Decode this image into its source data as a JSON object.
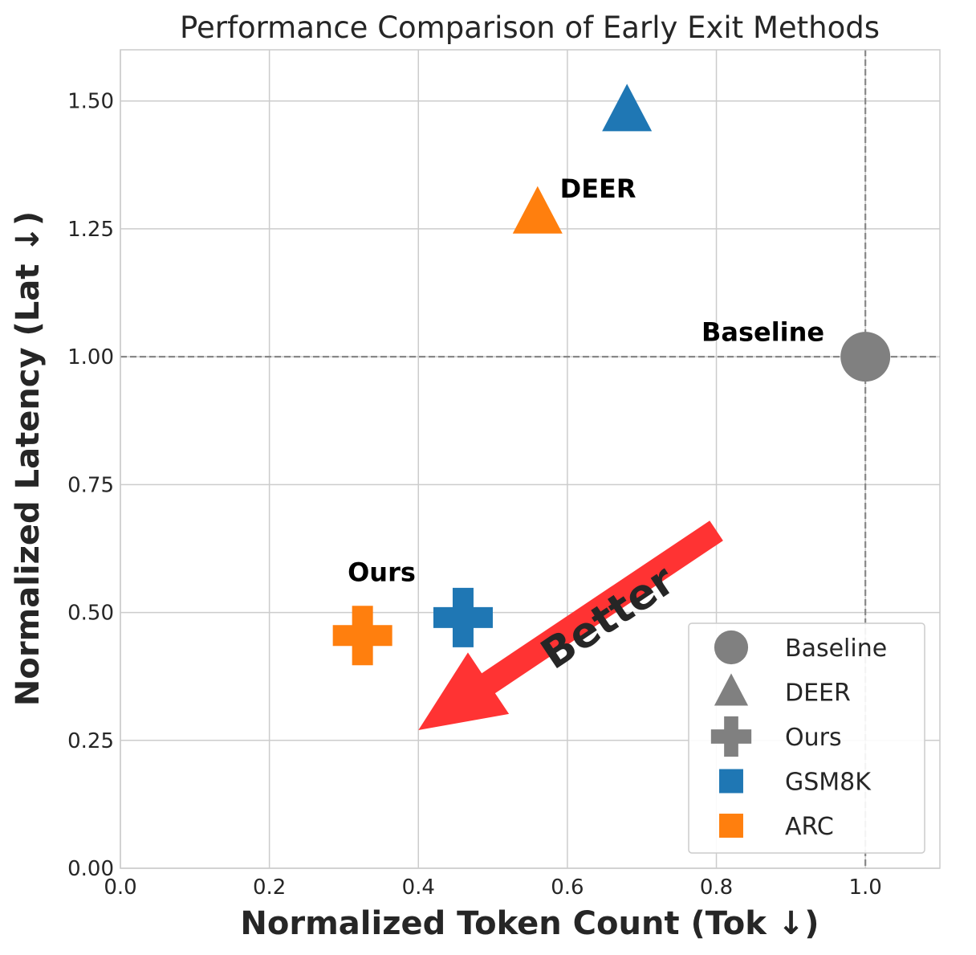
{
  "chart_data": {
    "type": "scatter",
    "title": "Performance Comparison of Early Exit Methods",
    "xlabel": "Normalized Token Count (Tok ↓)",
    "ylabel": "Normalized Latency (Lat ↓)",
    "xlim": [
      0.0,
      1.1
    ],
    "ylim": [
      0.0,
      1.6
    ],
    "x_ticks": [
      0.0,
      0.2,
      0.4,
      0.6,
      0.8,
      1.0
    ],
    "x_tick_labels": [
      "0.0",
      "0.2",
      "0.4",
      "0.6",
      "0.8",
      "1.0"
    ],
    "y_ticks": [
      0.0,
      0.25,
      0.5,
      0.75,
      1.0,
      1.25,
      1.5
    ],
    "y_tick_labels": [
      "0.00",
      "0.25",
      "0.50",
      "0.75",
      "1.00",
      "1.25",
      "1.50"
    ],
    "grid": true,
    "reference_lines": {
      "x": 1.0,
      "y": 1.0
    },
    "points": [
      {
        "method": "Baseline",
        "dataset": "",
        "x": 1.0,
        "y": 1.0,
        "marker": "circle",
        "color": "#808080"
      },
      {
        "method": "DEER",
        "dataset": "GSM8K",
        "x": 0.68,
        "y": 1.48,
        "marker": "triangle",
        "color": "#1f77b4"
      },
      {
        "method": "DEER",
        "dataset": "ARC",
        "x": 0.56,
        "y": 1.28,
        "marker": "triangle",
        "color": "#ff7f0e"
      },
      {
        "method": "Ours",
        "dataset": "GSM8K",
        "x": 0.46,
        "y": 0.49,
        "marker": "plus",
        "color": "#1f77b4"
      },
      {
        "method": "Ours",
        "dataset": "ARC",
        "x": 0.325,
        "y": 0.455,
        "marker": "plus",
        "color": "#ff7f0e"
      }
    ],
    "annotations": [
      {
        "text": "Baseline",
        "x": 0.78,
        "y": 1.05
      },
      {
        "text": "DEER",
        "x": 0.59,
        "y": 1.33
      },
      {
        "text": "Ours",
        "x": 0.305,
        "y": 0.58
      }
    ],
    "arrow": {
      "label": "Better",
      "from": [
        0.8,
        0.66
      ],
      "to": [
        0.4,
        0.27
      ],
      "color": "#ff3333"
    },
    "legend": {
      "position": "lower-right",
      "entries": [
        {
          "label": "Baseline",
          "marker": "circle",
          "color": "#808080"
        },
        {
          "label": "DEER",
          "marker": "triangle",
          "color": "#808080"
        },
        {
          "label": "Ours",
          "marker": "plus",
          "color": "#808080"
        },
        {
          "label": "GSM8K",
          "marker": "square",
          "color": "#1f77b4"
        },
        {
          "label": "ARC",
          "marker": "square",
          "color": "#ff7f0e"
        }
      ]
    }
  }
}
